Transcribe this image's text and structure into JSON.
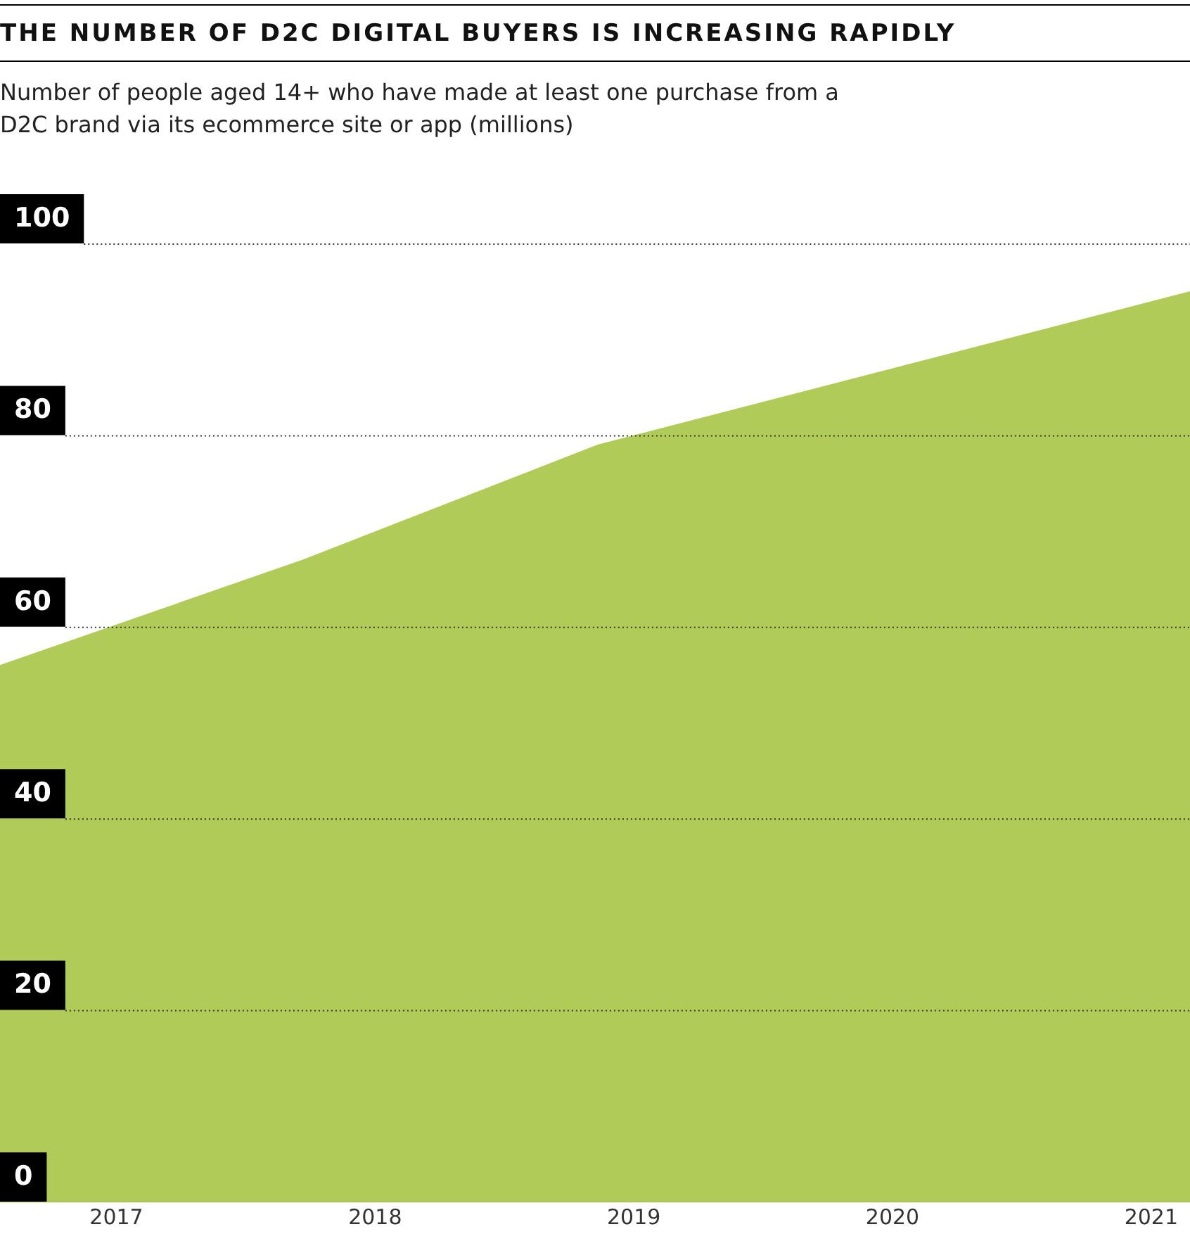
{
  "chart_data": {
    "type": "area",
    "title": "THE NUMBER OF D2C DIGITAL BUYERS IS INCREASING RAPIDLY",
    "subtitle": "Number of people aged 14+ who have made at least one purchase from a D2C brand via its ecommerce site or app (millions)",
    "x": [
      2016.55,
      2017.72,
      2018.86,
      2021.15
    ],
    "series": [
      {
        "color": "#b0cb57",
        "values": [
          56,
          67,
          79,
          95
        ]
      }
    ],
    "xlim": [
      2016.55,
      2021.15
    ],
    "xticks": [
      2017,
      2018,
      2019,
      2020,
      2021
    ],
    "ylim": [
      0,
      100
    ],
    "yticks": [
      0,
      20,
      40,
      60,
      80,
      100
    ],
    "grid": "y",
    "legend": false
  }
}
